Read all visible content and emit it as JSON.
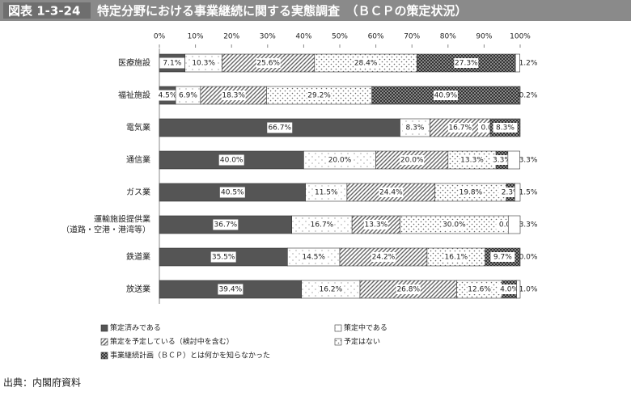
{
  "header": {
    "label": "図表 1-3-24",
    "title": "特定分野における事業継続に関する実態調査　（ＢＣＰの策定状況）"
  },
  "chart_data": {
    "type": "stacked_barh",
    "categories": [
      "医療施設",
      "福祉施設",
      "電気業",
      "通信業",
      "ガス業",
      "運輸施設提供業\n（道路・空港・港湾等）",
      "鉄道業",
      "放送業"
    ],
    "xlim": [
      0,
      100
    ],
    "xticks": [
      {
        "value": 0,
        "label": "0%"
      },
      {
        "value": 10,
        "label": "10%"
      },
      {
        "value": 20,
        "label": "20%"
      },
      {
        "value": 30,
        "label": "30%"
      },
      {
        "value": 40,
        "label": "40%"
      },
      {
        "value": 50,
        "label": "50%"
      },
      {
        "value": 60,
        "label": "60%"
      },
      {
        "value": 70,
        "label": "70%"
      },
      {
        "value": 80,
        "label": "80%"
      },
      {
        "value": 90,
        "label": "90%"
      },
      {
        "value": 100,
        "label": "100%"
      }
    ],
    "series": [
      {
        "name": "策定済みである",
        "color": "#555555",
        "values": [
          7.1,
          4.5,
          66.7,
          40.0,
          40.5,
          36.7,
          35.5,
          39.4
        ],
        "value_labels": [
          "7.1%",
          "4.5%",
          "66.7%",
          "40.0%",
          "40.5%",
          "36.7%",
          "35.5%",
          "39.4%"
        ]
      },
      {
        "name": "策定中である",
        "color": "#ffffff",
        "values": [
          10.3,
          6.9,
          8.3,
          20.0,
          11.5,
          16.7,
          14.5,
          16.2
        ],
        "value_labels": [
          "10.3%",
          "6.9%",
          "8.3%",
          "20.0%",
          "11.5%",
          "16.7%",
          "14.5%",
          "16.2%"
        ]
      },
      {
        "name": "策定を予定している（検討中を含む）",
        "color": "#999999",
        "values": [
          25.6,
          18.3,
          16.7,
          20.0,
          24.4,
          13.3,
          24.2,
          26.8
        ],
        "value_labels": [
          "25.6%",
          "18.3%",
          "16.7%",
          "20.0%",
          "24.4%",
          "13.3%",
          "24.2%",
          "26.8%"
        ]
      },
      {
        "name": "予定はない",
        "color": "#bbbbbb",
        "values": [
          28.4,
          29.2,
          0.0,
          13.3,
          19.8,
          30.0,
          16.1,
          12.6
        ],
        "value_labels": [
          "28.4%",
          "29.2%",
          "0.0%",
          "13.3%",
          "19.8%",
          "30.0%",
          "16.1%",
          "12.6%"
        ]
      },
      {
        "name": "事業継続計画（ＢＣＰ）とは何かを知らなかった",
        "color": "#444444",
        "values": [
          27.3,
          40.9,
          8.3,
          3.3,
          2.3,
          0.0,
          9.7,
          4.0
        ],
        "value_labels": [
          "27.3%",
          "40.9%",
          "8.3%",
          "3.3%",
          "2.3%",
          "0.0%",
          "9.7%",
          "4.0%"
        ]
      },
      {
        "color": "#ffffff",
        "values": [
          1.2,
          0.2,
          null,
          3.3,
          1.5,
          3.3,
          0.0,
          1.0
        ],
        "value_labels": [
          "1.2%",
          "0.2%",
          null,
          "3.3%",
          "1.5%",
          "3.3%",
          "0.0%",
          "1.0%"
        ]
      }
    ]
  },
  "source": "出典：内閣府資料"
}
